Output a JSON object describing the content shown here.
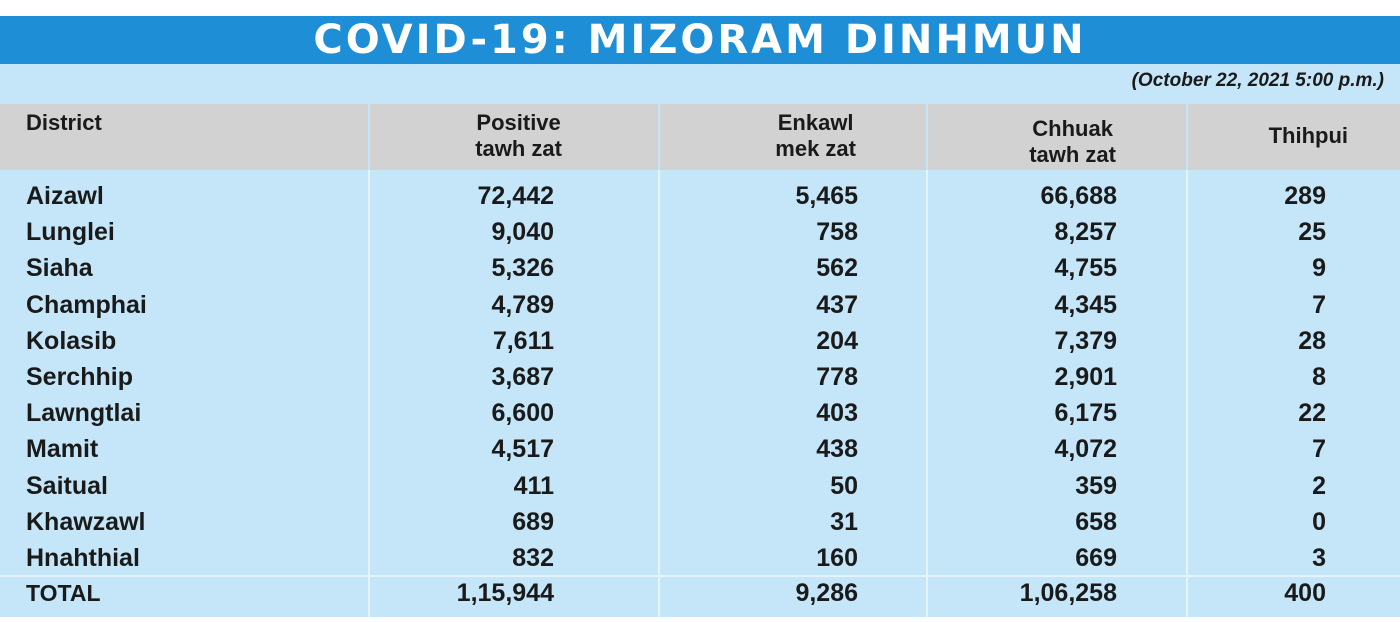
{
  "title": "COVID-19: MIZORAM DINHMUN",
  "date": "(October 22, 2021 5:00 p.m.)",
  "columns": {
    "district": "District",
    "positive": "Positive\ntawh zat",
    "enkawl": "Enkawl\nmek zat",
    "chhuak": "Chhuak\ntawh zat",
    "thihpui": "Thihpui"
  },
  "rows": [
    {
      "district": "Aizawl",
      "positive": "72,442",
      "enkawl": "5,465",
      "chhuak": "66,688",
      "thihpui": "289"
    },
    {
      "district": "Lunglei",
      "positive": "9,040",
      "enkawl": "758",
      "chhuak": "8,257",
      "thihpui": "25"
    },
    {
      "district": "Siaha",
      "positive": "5,326",
      "enkawl": "562",
      "chhuak": "4,755",
      "thihpui": "9"
    },
    {
      "district": "Champhai",
      "positive": "4,789",
      "enkawl": "437",
      "chhuak": "4,345",
      "thihpui": "7"
    },
    {
      "district": "Kolasib",
      "positive": "7,611",
      "enkawl": "204",
      "chhuak": "7,379",
      "thihpui": "28"
    },
    {
      "district": "Serchhip",
      "positive": "3,687",
      "enkawl": "778",
      "chhuak": "2,901",
      "thihpui": "8"
    },
    {
      "district": "Lawngtlai",
      "positive": "6,600",
      "enkawl": "403",
      "chhuak": "6,175",
      "thihpui": "22"
    },
    {
      "district": "Mamit",
      "positive": "4,517",
      "enkawl": "438",
      "chhuak": "4,072",
      "thihpui": "7"
    },
    {
      "district": "Saitual",
      "positive": "411",
      "enkawl": "50",
      "chhuak": "359",
      "thihpui": "2"
    },
    {
      "district": "Khawzawl",
      "positive": "689",
      "enkawl": "31",
      "chhuak": "658",
      "thihpui": "0"
    },
    {
      "district": "Hnahthial",
      "positive": "832",
      "enkawl": "160",
      "chhuak": "669",
      "thihpui": "3"
    }
  ],
  "total": {
    "district": "TOTAL",
    "positive": "1,15,944",
    "enkawl": "9,286",
    "chhuak": "1,06,258",
    "thihpui": "400"
  },
  "colors": {
    "title_bg": "#1e8fd6",
    "panel_bg": "#c4e6f8",
    "header_bg": "#d2d2d2"
  }
}
